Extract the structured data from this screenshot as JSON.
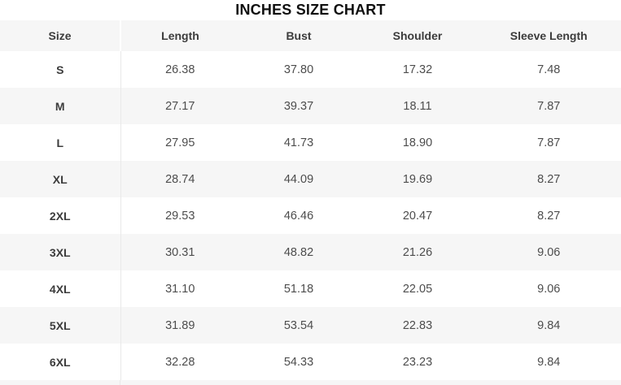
{
  "title": "INCHES SIZE CHART",
  "colors": {
    "stripe": "#f6f6f6",
    "divider": "#e9e9e9",
    "title_text": "#101010",
    "header_text": "#3c3c3c",
    "cell_text": "#4d4d4d"
  },
  "chart_data": {
    "type": "table",
    "title": "INCHES SIZE CHART",
    "unit": "inches",
    "columns": [
      "Size",
      "Length",
      "Bust",
      "Shoulder",
      "Sleeve Length"
    ],
    "rows": [
      [
        "S",
        "26.38",
        "37.80",
        "17.32",
        "7.48"
      ],
      [
        "M",
        "27.17",
        "39.37",
        "18.11",
        "7.87"
      ],
      [
        "L",
        "27.95",
        "41.73",
        "18.90",
        "7.87"
      ],
      [
        "XL",
        "28.74",
        "44.09",
        "19.69",
        "8.27"
      ],
      [
        "2XL",
        "29.53",
        "46.46",
        "20.47",
        "8.27"
      ],
      [
        "3XL",
        "30.31",
        "48.82",
        "21.26",
        "9.06"
      ],
      [
        "4XL",
        "31.10",
        "51.18",
        "22.05",
        "9.06"
      ],
      [
        "5XL",
        "31.89",
        "53.54",
        "22.83",
        "9.84"
      ],
      [
        "6XL",
        "32.28",
        "54.33",
        "23.23",
        "9.84"
      ]
    ],
    "layout": {
      "zebra_striping": true,
      "first_row_background": "white",
      "header_background": "#f6f6f6",
      "column_divider_after": "Size"
    }
  }
}
